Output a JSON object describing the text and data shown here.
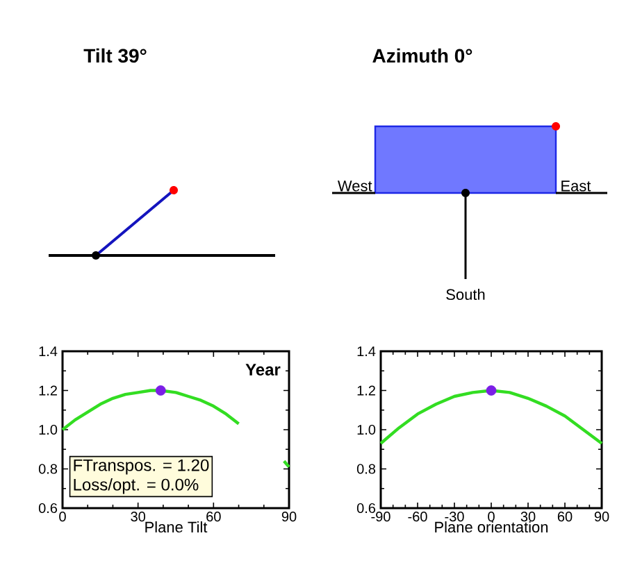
{
  "chart_data": [
    {
      "type": "other",
      "title": "Tilt 39°"
    },
    {
      "type": "other",
      "title": "Azimuth 0°",
      "annotations": [
        "West",
        "East",
        "South"
      ]
    },
    {
      "type": "line",
      "xlabel": "Plane Tilt",
      "xlim": [
        0,
        90
      ],
      "xticks": [
        0,
        30,
        60,
        90
      ],
      "ylim": [
        0.6,
        1.4
      ],
      "yticks": [
        {
          "value": 0.6,
          "label": "0.6"
        },
        {
          "value": 0.8,
          "label": "0.8"
        },
        {
          "value": 1.0,
          "label": "1.0"
        },
        {
          "value": 1.2,
          "label": "1.2"
        },
        {
          "value": 1.4,
          "label": "1.4"
        }
      ],
      "grid": false,
      "annotations": [
        "Year",
        "FTranspos. = 1.20",
        "Loss/opt. = 0.0%"
      ],
      "series": [
        {
          "type": "line",
          "marker": "none",
          "color": "#33dd22",
          "x": [
            0,
            5,
            10,
            15,
            20,
            25,
            30,
            35,
            39,
            45,
            50,
            55,
            60,
            65,
            70,
            75,
            80,
            85,
            88,
            90
          ],
          "values": [
            1.0,
            1.05,
            1.09,
            1.13,
            1.16,
            1.18,
            1.19,
            1.2,
            1.2,
            1.19,
            1.17,
            1.15,
            1.12,
            1.08,
            1.03,
            null,
            null,
            null,
            0.84,
            0.81
          ]
        },
        {
          "type": "scatter",
          "marker": "circle",
          "color": "#7b1fe6",
          "x": [
            39
          ],
          "values": [
            1.2
          ]
        }
      ]
    },
    {
      "type": "line",
      "xlabel": "Plane orientation",
      "xlim": [
        -90,
        90
      ],
      "xticks": [
        -90,
        -60,
        -30,
        0,
        30,
        60,
        90
      ],
      "ylim": [
        0.6,
        1.4
      ],
      "yticks": [
        {
          "value": 0.6,
          "label": "0.6"
        },
        {
          "value": 0.8,
          "label": "0.8"
        },
        {
          "value": 1.0,
          "label": "1.0"
        },
        {
          "value": 1.2,
          "label": "1.2"
        },
        {
          "value": 1.4,
          "label": "1.4"
        }
      ],
      "grid": false,
      "series": [
        {
          "type": "line",
          "marker": "none",
          "color": "#33dd22",
          "x": [
            -90,
            -75,
            -60,
            -45,
            -30,
            -15,
            0,
            15,
            30,
            45,
            60,
            75,
            90
          ],
          "values": [
            0.93,
            1.01,
            1.08,
            1.13,
            1.17,
            1.19,
            1.2,
            1.19,
            1.16,
            1.12,
            1.07,
            1.0,
            0.93
          ]
        },
        {
          "type": "scatter",
          "marker": "circle",
          "color": "#7b1fe6",
          "x": [
            0
          ],
          "values": [
            1.2
          ]
        }
      ]
    }
  ]
}
